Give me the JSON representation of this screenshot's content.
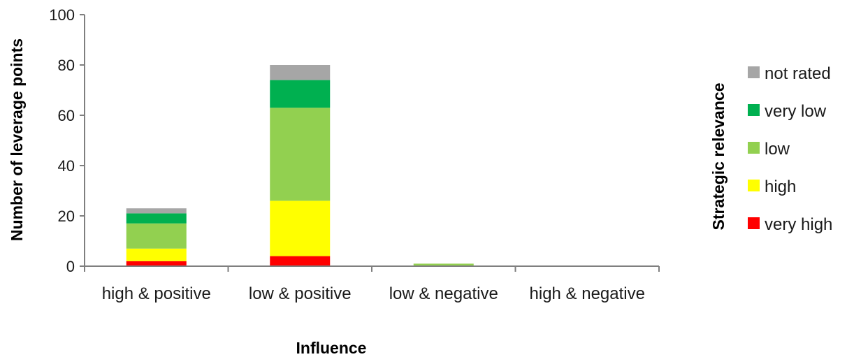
{
  "chart_data": {
    "type": "bar",
    "stacked": true,
    "categories": [
      "high & positive",
      "low & positive",
      "low & negative",
      "high & negative"
    ],
    "series": [
      {
        "name": "very high",
        "color": "#ff0000",
        "values": [
          2,
          4,
          0,
          0
        ]
      },
      {
        "name": "high",
        "color": "#ffff00",
        "values": [
          5,
          22,
          0,
          0
        ]
      },
      {
        "name": "low",
        "color": "#92d050",
        "values": [
          10,
          37,
          1,
          0
        ]
      },
      {
        "name": "very low",
        "color": "#00b050",
        "values": [
          4,
          11,
          0,
          0
        ]
      },
      {
        "name": "not rated",
        "color": "#a6a6a6",
        "values": [
          2,
          6,
          0,
          0
        ]
      }
    ],
    "xlabel": "Influence",
    "ylabel": "Number of leverage points",
    "ylim": [
      0,
      100
    ],
    "yticks": [
      "0",
      "20",
      "40",
      "60",
      "80",
      "100"
    ],
    "legend": {
      "title": "Strategic relevance",
      "placement": "right",
      "order": [
        "not rated",
        "very low",
        "low",
        "high",
        "very high"
      ]
    },
    "grid": false
  }
}
